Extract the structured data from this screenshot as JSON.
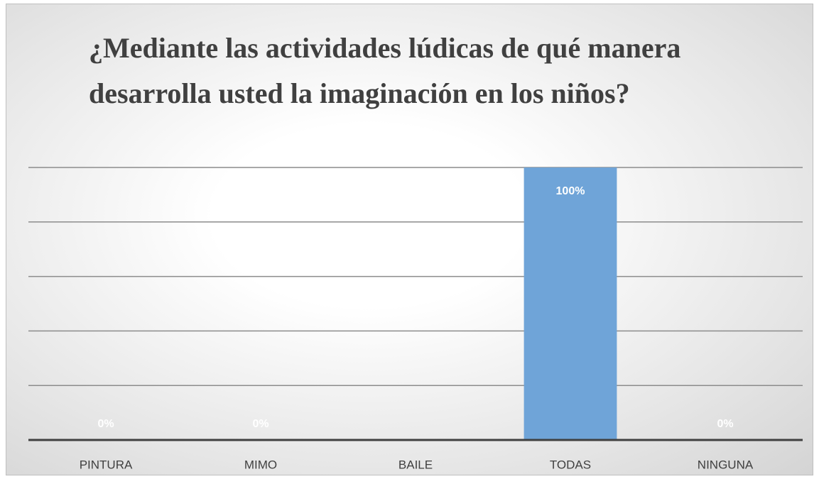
{
  "chart_data": {
    "type": "bar",
    "title": "¿Mediante las actividades lúdicas de qué manera desarrolla usted la imaginación en los niños?",
    "categories": [
      "PINTURA",
      "MIMO",
      "BAILE",
      "TODAS",
      "NINGUNA"
    ],
    "values": [
      0,
      0,
      0,
      100,
      0
    ],
    "value_labels": [
      "0%",
      "0%",
      null,
      "100%",
      "0%"
    ],
    "color": "#6fa4d8",
    "ylim": [
      0,
      100
    ],
    "yticks": [
      0,
      20,
      40,
      60,
      80,
      100
    ],
    "grid": true
  }
}
